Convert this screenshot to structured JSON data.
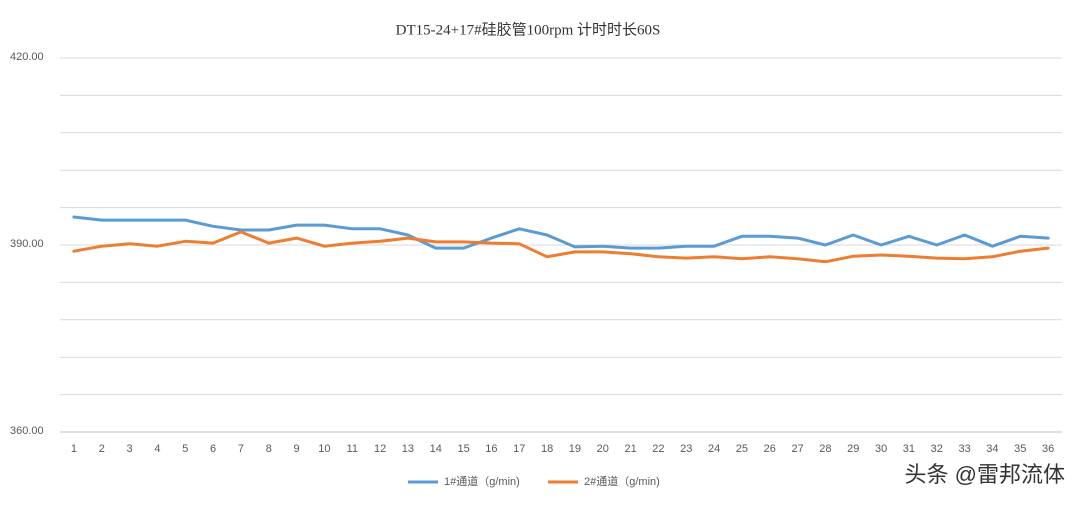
{
  "chart_data": {
    "type": "line",
    "title": "DT15-24+17#硅胶管100rpm 计时时长60S",
    "categories": [
      "1",
      "2",
      "3",
      "4",
      "5",
      "6",
      "7",
      "8",
      "9",
      "10",
      "11",
      "12",
      "13",
      "14",
      "15",
      "16",
      "17",
      "18",
      "19",
      "20",
      "21",
      "22",
      "23",
      "24",
      "25",
      "26",
      "27",
      "28",
      "29",
      "30",
      "31",
      "32",
      "33",
      "34",
      "35",
      "36"
    ],
    "series": [
      {
        "name": "1#通道（g/min)",
        "color": "#5b9bd5",
        "values": [
          394.5,
          394.0,
          394.0,
          394.0,
          394.0,
          393.0,
          392.4,
          392.4,
          393.2,
          393.2,
          392.6,
          392.6,
          391.6,
          389.5,
          389.5,
          391.1,
          392.6,
          391.6,
          389.7,
          389.8,
          389.5,
          389.5,
          389.8,
          389.8,
          391.4,
          391.4,
          391.1,
          390.0,
          391.6,
          390.0,
          391.4,
          390.0,
          391.6,
          389.8,
          391.4,
          391.1
        ]
      },
      {
        "name": "2#通道（g/min)",
        "color": "#ed7d31",
        "values": [
          389.0,
          389.8,
          390.2,
          389.8,
          390.6,
          390.3,
          392.1,
          390.3,
          391.1,
          389.8,
          390.3,
          390.6,
          391.1,
          390.5,
          390.5,
          390.3,
          390.2,
          388.1,
          388.9,
          388.9,
          388.6,
          388.1,
          387.9,
          388.1,
          387.8,
          388.1,
          387.8,
          387.3,
          388.2,
          388.4,
          388.2,
          387.9,
          387.8,
          388.1,
          389.0,
          389.5
        ]
      }
    ],
    "ylim": [
      360,
      420
    ],
    "yticks": [
      {
        "value": 360,
        "label": "360.00"
      },
      {
        "value": 366,
        "label": null
      },
      {
        "value": 372,
        "label": null
      },
      {
        "value": 378,
        "label": null
      },
      {
        "value": 384,
        "label": null
      },
      {
        "value": 390,
        "label": "390.00"
      },
      {
        "value": 396,
        "label": null
      },
      {
        "value": 402,
        "label": null
      },
      {
        "value": 408,
        "label": null
      },
      {
        "value": 414,
        "label": null
      },
      {
        "value": 420,
        "label": "420.00"
      }
    ],
    "grid": true,
    "legend": "bottom",
    "watermark": "头条 @雷邦流体"
  }
}
